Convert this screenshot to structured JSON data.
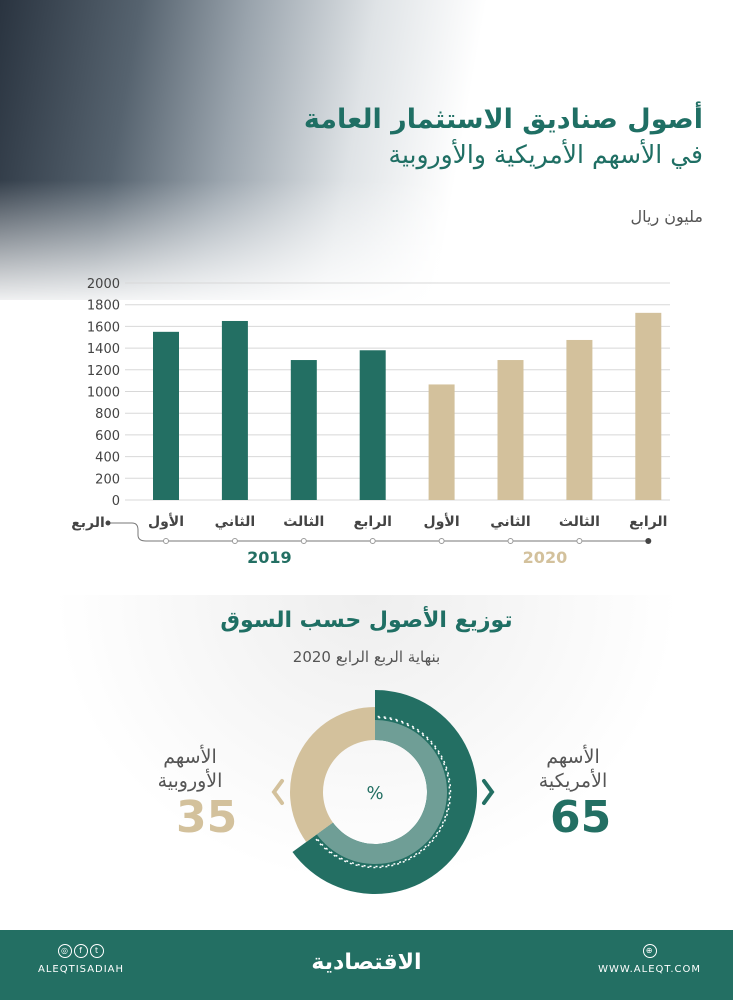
{
  "title_line1": "أصول صناديق الاستثمار العامة",
  "title_line2": "في الأسهم الأمريكية والأوروبية",
  "unit": "مليون ريال",
  "chart_data": [
    {
      "type": "bar",
      "title": "أصول صناديق الاستثمار العامة في الأسهم الأمريكية والأوروبية",
      "ylabel": "مليون ريال",
      "xlabel": "الربع",
      "ylim": [
        0,
        2000
      ],
      "yticks": [
        0,
        200,
        400,
        600,
        800,
        1000,
        1200,
        1400,
        1600,
        1800,
        2000
      ],
      "grid": true,
      "categories": [
        "الأول",
        "الثاني",
        "الثالث",
        "الرابع",
        "الأول",
        "الثاني",
        "الثالث",
        "الرابع"
      ],
      "groups": [
        {
          "name": "2019",
          "color": "#236f63"
        },
        {
          "name": "2020",
          "color": "#d3c19c"
        }
      ],
      "group_of": [
        0,
        0,
        0,
        0,
        1,
        1,
        1,
        1
      ],
      "values": [
        1550,
        1650,
        1290,
        1380,
        1065,
        1290,
        1475,
        1725
      ]
    },
    {
      "type": "pie",
      "title": "توزيع الأصول حسب السوق",
      "subtitle": "بنهاية الربع الرابع 2020",
      "center_label": "%",
      "slices": [
        {
          "label": "الأسهم الأمريكية",
          "value": 65,
          "color": "#236f63"
        },
        {
          "label": "الأسهم الأوروبية",
          "value": 35,
          "color": "#d3c19c"
        }
      ]
    }
  ],
  "footer": {
    "handle": "ALEQTISADIAH",
    "logo": "الاقتصادية",
    "website": "WWW.ALEQT.COM",
    "social_icons": [
      "instagram-icon",
      "facebook-icon",
      "twitter-icon"
    ]
  }
}
